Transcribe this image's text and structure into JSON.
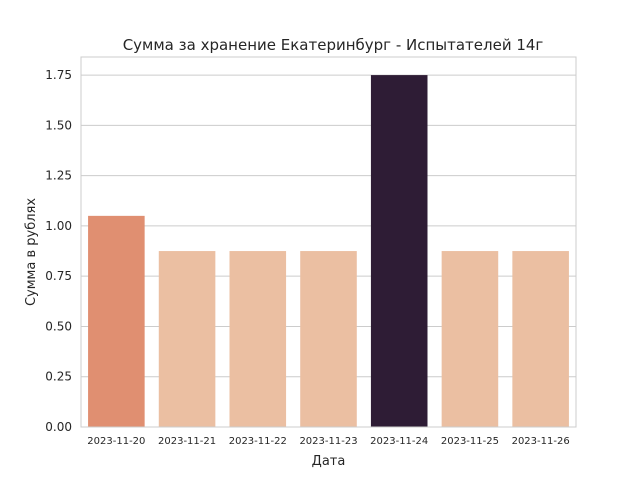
{
  "chart_data": {
    "type": "bar",
    "title": "Сумма за хранение Екатеринбург - Испытателей 14г",
    "xlabel": "Дата",
    "ylabel": "Сумма в рублях",
    "categories": [
      "2023-11-20",
      "2023-11-21",
      "2023-11-22",
      "2023-11-23",
      "2023-11-24",
      "2023-11-25",
      "2023-11-26"
    ],
    "values": [
      1.05,
      0.875,
      0.875,
      0.875,
      1.75,
      0.875,
      0.875
    ],
    "bar_colors": [
      "#e08f71",
      "#ebbfa2",
      "#ebbfa2",
      "#ebbfa2",
      "#2e1c35",
      "#ebbfa2",
      "#ebbfa2"
    ],
    "ylim": [
      0,
      1.84
    ],
    "yticks": [
      "0.00",
      "0.25",
      "0.50",
      "0.75",
      "1.00",
      "1.25",
      "1.50",
      "1.75"
    ],
    "grid": true,
    "grid_color": "#cccccc",
    "spine_color": "#cccccc",
    "background": "#ffffff"
  }
}
